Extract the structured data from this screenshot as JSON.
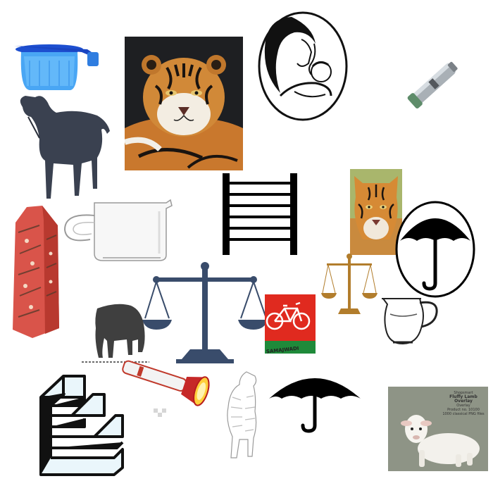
{
  "title": "",
  "items": [
    {
      "icon": "blue-jug-icon"
    },
    {
      "icon": "sheep-silhouette-icon"
    },
    {
      "icon": "tiger-photo"
    },
    {
      "icon": "mother-baby-icon"
    },
    {
      "icon": "flashlight-icon"
    },
    {
      "icon": "ladder-icon"
    },
    {
      "icon": "tiger-face-photo"
    },
    {
      "icon": "umbrella-badge-icon"
    },
    {
      "icon": "patterned-block-icon"
    },
    {
      "icon": "glass-jug-icon"
    },
    {
      "icon": "scales-icon"
    },
    {
      "icon": "scales-small-icon"
    },
    {
      "icon": "bicycle-flag-icon"
    },
    {
      "icon": "pitcher-icon"
    },
    {
      "icon": "grazing-animal-icon"
    },
    {
      "icon": "stairs-icon"
    },
    {
      "icon": "torch-icon"
    },
    {
      "icon": "tiger-sketch-icon"
    },
    {
      "icon": "umbrella-icon"
    },
    {
      "icon": "lamb-photo"
    }
  ],
  "lamb_card": {
    "line1": "Shopsmart",
    "line2": "Fluffy Lamb Overlay",
    "line3": "Overlay",
    "line4": "Product no. 10100",
    "line5": "1000 classical PNG files"
  },
  "colors": {
    "background": "#ffffff",
    "sheep": "#3a4150",
    "scales": "#394c6b",
    "umbrella": "#000000",
    "bicycle_red": "#e02a1f",
    "bicycle_green": "#1f8a3a",
    "lamb_card_bg": "#8e9486"
  }
}
